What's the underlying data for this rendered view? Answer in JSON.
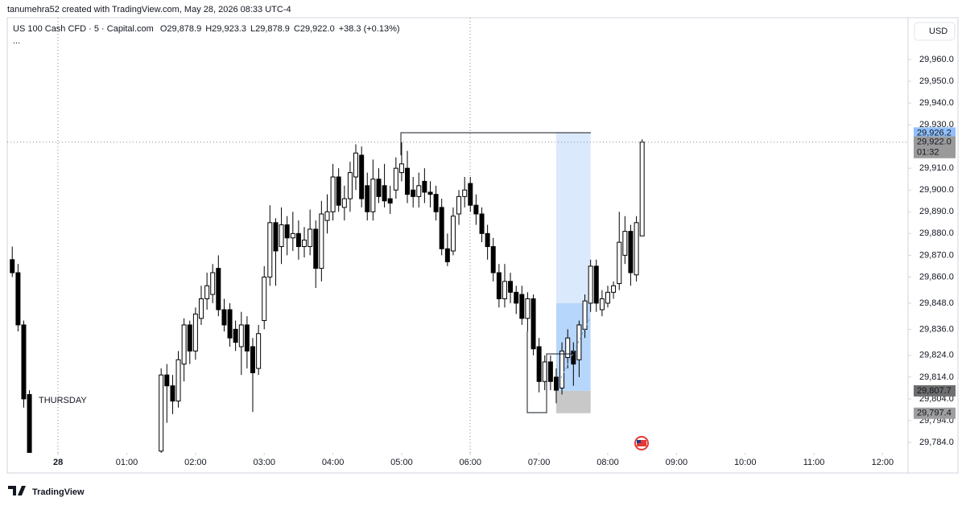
{
  "header": "tanumehra52 created with TradingView.com, May 28, 2026 08:33 UTC-4",
  "brand": "TradingView",
  "chart_data": {
    "type": "candlestick",
    "symbol": "US 100 Cash CFD · 5 · Capital.com",
    "ohlc_labels": [
      "O29,878.9",
      "H29,923.3",
      "L29,878.9",
      "C29,922.0"
    ],
    "change": "+38.3 (+0.13%)",
    "more": "...",
    "currency": "USD",
    "session_label": "THURSDAY",
    "countdown": "01:32",
    "bull_color": "#ffffff",
    "bear_color": "#000000",
    "wick_color": "#000000",
    "grid": false,
    "xlim": [
      -0.74,
      12.37
    ],
    "ylim": [
      29779.2,
      29979.2
    ],
    "xticks": [
      {
        "value": 0,
        "label": "28"
      },
      {
        "value": 1,
        "label": "01:00"
      },
      {
        "value": 2,
        "label": "02:00"
      },
      {
        "value": 3,
        "label": "03:00"
      },
      {
        "value": 4,
        "label": "04:00"
      },
      {
        "value": 5,
        "label": "05:00"
      },
      {
        "value": 6,
        "label": "06:00"
      },
      {
        "value": 7,
        "label": "07:00"
      },
      {
        "value": 8,
        "label": "08:00"
      },
      {
        "value": 9,
        "label": "09:00"
      },
      {
        "value": 10,
        "label": "10:00"
      },
      {
        "value": 11,
        "label": "11:00"
      },
      {
        "value": 12,
        "label": "12:00"
      }
    ],
    "yticks": [
      {
        "value": 29960,
        "label": "29,960.0"
      },
      {
        "value": 29950,
        "label": "29,950.0"
      },
      {
        "value": 29940,
        "label": "29,940.0"
      },
      {
        "value": 29930,
        "label": "29,930.0"
      },
      {
        "value": 29910,
        "label": "29,910.0"
      },
      {
        "value": 29900,
        "label": "29,900.0"
      },
      {
        "value": 29890,
        "label": "29,890.0"
      },
      {
        "value": 29880,
        "label": "29,880.0"
      },
      {
        "value": 29870,
        "label": "29,870.0"
      },
      {
        "value": 29860,
        "label": "29,860.0"
      },
      {
        "value": 29848,
        "label": "29,848.0"
      },
      {
        "value": 29836,
        "label": "29,836.0"
      },
      {
        "value": 29824,
        "label": "29,824.0"
      },
      {
        "value": 29814,
        "label": "29,814.0"
      },
      {
        "value": 29804,
        "label": "29,804.0"
      },
      {
        "value": 29794,
        "label": "29,794.0"
      },
      {
        "value": 29784,
        "label": "29,784.0"
      }
    ],
    "x": [
      -0.667,
      -0.583,
      -0.5,
      -0.417,
      1.5,
      1.583,
      1.667,
      1.75,
      1.833,
      1.917,
      2.0,
      2.083,
      2.167,
      2.25,
      2.333,
      2.417,
      2.5,
      2.583,
      2.667,
      2.75,
      2.833,
      2.917,
      3.0,
      3.083,
      3.167,
      3.25,
      3.333,
      3.417,
      3.5,
      3.583,
      3.667,
      3.75,
      3.833,
      3.917,
      4.0,
      4.083,
      4.167,
      4.25,
      4.333,
      4.417,
      4.5,
      4.583,
      4.667,
      4.75,
      4.833,
      4.917,
      5.0,
      5.083,
      5.167,
      5.25,
      5.333,
      5.417,
      5.5,
      5.583,
      5.667,
      5.75,
      5.833,
      5.917,
      6.0,
      6.083,
      6.167,
      6.25,
      6.333,
      6.417,
      6.5,
      6.583,
      6.667,
      6.75,
      6.833,
      6.917,
      7.0,
      7.083,
      7.167,
      7.25,
      7.333,
      7.417,
      7.5,
      7.583,
      7.667,
      7.75,
      7.833,
      7.917,
      8.0,
      8.083,
      8.167,
      8.25,
      8.333,
      8.417,
      8.5
    ],
    "open": [
      29868,
      29862,
      29838,
      29806,
      29780,
      29815,
      29810,
      29803,
      29820,
      29838,
      29826,
      29841,
      29850,
      29852,
      29864,
      29845,
      29845,
      29836,
      29828,
      29838,
      29828,
      29818,
      29840,
      29860,
      29885,
      29874,
      29884,
      29878,
      29880,
      29874,
      29874,
      29882,
      29864,
      29886,
      29890,
      29906,
      29892,
      29896,
      29906,
      29916,
      29902,
      29890,
      29905,
      29902,
      29896,
      29900,
      29908,
      29910,
      29900,
      29897,
      29904,
      29899,
      29898,
      29892,
      29873,
      29872,
      29889,
      29897,
      29903,
      29893,
      29889,
      29880,
      29874,
      29862,
      29850,
      29858,
      29853,
      29852,
      29841,
      29850,
      29828,
      29812,
      29821,
      29814,
      29809,
      29823,
      29826,
      29822,
      29836,
      29848,
      29865,
      29845,
      29848,
      29853,
      29857,
      29870,
      29881,
      29861,
      29878.9
    ],
    "high": [
      29874,
      29866,
      29840,
      29808,
      29818,
      29820,
      29815,
      29826,
      29841,
      29840,
      29846,
      29856,
      29862,
      29866,
      29870,
      29850,
      29848,
      29840,
      29844,
      29842,
      29832,
      29838,
      29865,
      29893,
      29887,
      29892,
      29888,
      29890,
      29886,
      29883,
      29891,
      29886,
      29895,
      29898,
      29912,
      29910,
      29902,
      29913,
      29921,
      29920,
      29908,
      29914,
      29910,
      29912,
      29902,
      29915,
      29922,
      29918,
      29906,
      29908,
      29910,
      29904,
      29902,
      29896,
      29880,
      29892,
      29900,
      29906,
      29906,
      29898,
      29892,
      29884,
      29878,
      29866,
      29866,
      29862,
      29856,
      29856,
      29853,
      29852,
      29832,
      29824,
      29824,
      29818,
      29830,
      29836,
      29830,
      29840,
      29852,
      29868,
      29868,
      29854,
      29856,
      29858,
      29890,
      29888,
      29884,
      29888,
      29923.3
    ],
    "low": [
      29860,
      29835,
      29800,
      29770,
      29770,
      29793,
      29797,
      29800,
      29812,
      29820,
      29822,
      29838,
      29845,
      29848,
      29842,
      29835,
      29828,
      29826,
      29815,
      29818,
      29798,
      29815,
      29836,
      29856,
      29856,
      29866,
      29870,
      29872,
      29868,
      29869,
      29870,
      29855,
      29858,
      29880,
      29886,
      29890,
      29886,
      29890,
      29900,
      29892,
      29886,
      29886,
      29894,
      29892,
      29889,
      29896,
      29904,
      29894,
      29892,
      29892,
      29894,
      29892,
      29886,
      29870,
      29865,
      29870,
      29884,
      29892,
      29890,
      29884,
      29876,
      29868,
      29858,
      29846,
      29846,
      29848,
      29843,
      29838,
      29835,
      29824,
      29807,
      29808,
      29808,
      29802,
      29806,
      29818,
      29810,
      29814,
      29832,
      29844,
      29844,
      29842,
      29846,
      29850,
      29854,
      29866,
      29856,
      29858,
      29878.9
    ],
    "close": [
      29862,
      29838,
      29804,
      29772,
      29815,
      29810,
      29803,
      29822,
      29838,
      29826,
      29843,
      29850,
      29856,
      29862,
      29845,
      29838,
      29832,
      29830,
      29838,
      29826,
      29816,
      29834,
      29860,
      29885,
      29872,
      29884,
      29878,
      29880,
      29874,
      29877,
      29882,
      29864,
      29889,
      29890,
      29906,
      29893,
      29896,
      29908,
      29917,
      29896,
      29890,
      29905,
      29897,
      29895,
      29894,
      29910,
      29912,
      29898,
      29897,
      29902,
      29899,
      29898,
      29890,
      29873,
      29867,
      29888,
      29897,
      29900,
      29893,
      29889,
      29880,
      29874,
      29862,
      29850,
      29858,
      29853,
      29848,
      29841,
      29850,
      29827,
      29812,
      29821,
      29812,
      29808,
      29826,
      29832,
      29820,
      29838,
      29849,
      29865,
      29848,
      29850,
      29853,
      29856,
      29876,
      29881,
      29862,
      29885,
      29922.0
    ],
    "position": {
      "x": [
        7.25,
        7.75
      ],
      "zones": [
        {
          "low": 29848,
          "high": 29926.2,
          "color": "#dbe9fc"
        },
        {
          "low": 29807.7,
          "high": 29848,
          "color": "#b7d6fb"
        },
        {
          "low": 29797.4,
          "high": 29807.7,
          "color": "#c8c8c8"
        }
      ]
    },
    "price_labels": [
      {
        "value": 29926.2,
        "label": "29,926.2",
        "color": "#90bff9",
        "text_color": "#131722"
      },
      {
        "value": 29922.0,
        "label": "29,922.0",
        "color": "#9a9a9a",
        "text_color": "#ffffff"
      },
      {
        "value": 29807.7,
        "label": "29,807.7",
        "color": "#6e6e6e",
        "text_color": "#ffffff"
      },
      {
        "value": 29797.4,
        "label": "29,797.4",
        "color": "#9e9e9e",
        "text_color": "#131722"
      }
    ]
  }
}
